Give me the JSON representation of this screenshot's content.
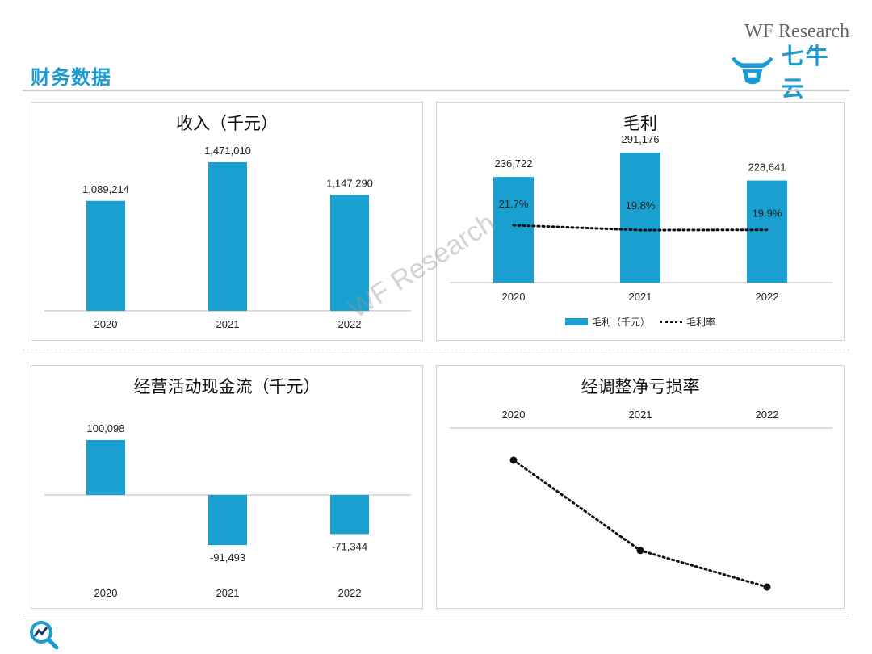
{
  "header": {
    "brand_text": "WF Research",
    "page_title": "财务数据",
    "logo_text": "七牛云"
  },
  "watermark": "WF Research",
  "colors": {
    "accent": "#1b9bd1",
    "bar": "#1aa0d0",
    "line": "#111111"
  },
  "icons": {
    "logo": "bull-head-logo-icon",
    "footer": "magnifier-chart-icon"
  },
  "panels": {
    "revenue": {
      "title": "收入（千元）"
    },
    "gross_profit": {
      "title": "毛利",
      "legend_bar": "毛利（千元）",
      "legend_line": "毛利率"
    },
    "cashflow": {
      "title": "经营活动现金流（千元）"
    },
    "loss_rate": {
      "title": "经调整净亏损率"
    }
  },
  "chart_data": [
    {
      "type": "bar",
      "title": "收入（千元）",
      "categories": [
        "2020",
        "2021",
        "2022"
      ],
      "values": [
        1089214,
        1471010,
        1147290
      ],
      "labels": [
        "1,089,214",
        "1,471,010",
        "1,147,290"
      ],
      "ylim": [
        0,
        1600000
      ]
    },
    {
      "type": "bar",
      "title": "毛利",
      "categories": [
        "2020",
        "2021",
        "2022"
      ],
      "series": [
        {
          "name": "毛利（千元）",
          "values": [
            236722,
            291176,
            228641
          ],
          "labels": [
            "236,722",
            "291,176",
            "228,641"
          ]
        },
        {
          "name": "毛利率",
          "type": "line",
          "values": [
            21.7,
            19.8,
            19.9
          ],
          "labels": [
            "21.7%",
            "19.8%",
            "19.9%"
          ]
        }
      ],
      "ylim": [
        0,
        300000
      ]
    },
    {
      "type": "bar",
      "title": "经营活动现金流（千元）",
      "categories": [
        "2020",
        "2021",
        "2022"
      ],
      "values": [
        100098,
        -91493,
        -71344
      ],
      "labels": [
        "100,098",
        "-91,493",
        "-71,344"
      ],
      "ylim": [
        -100000,
        110000
      ]
    },
    {
      "type": "line",
      "title": "经调整净亏损率",
      "categories": [
        "2020",
        "2021",
        "2022"
      ],
      "values": [
        -15,
        -57,
        -74
      ],
      "ylim": [
        -80,
        0
      ],
      "note": "values not printed; estimated relative levels"
    }
  ]
}
